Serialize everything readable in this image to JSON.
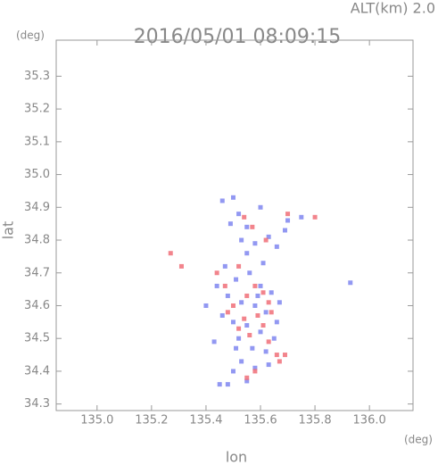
{
  "chart_data": {
    "type": "scatter",
    "title": "2016/05/01 08:09:15",
    "subtitle": "ALT(km) 2.0",
    "x_label": "lon",
    "y_label": "lat",
    "x_unit": "(deg)",
    "y_unit": "(deg)",
    "xlim": [
      134.85,
      136.16
    ],
    "ylim": [
      34.28,
      35.41
    ],
    "xticks": [
      {
        "value": 135,
        "label": "135.0"
      },
      135.2,
      135.4,
      135.6,
      135.8,
      {
        "value": 136,
        "label": "136.0"
      }
    ],
    "yticks": [
      34.3,
      34.4,
      34.5,
      34.6,
      34.7,
      34.8,
      34.9,
      {
        "value": 35,
        "label": "35.0"
      },
      35.1,
      35.2,
      35.3
    ],
    "series": [
      {
        "color": "#7f86f0",
        "x": [
          135.46,
          135.5,
          135.52,
          135.49,
          135.55,
          135.6,
          135.63,
          135.58,
          135.66,
          135.7,
          135.75,
          135.53,
          135.47,
          135.51,
          135.56,
          135.6,
          135.64,
          135.48,
          135.53,
          135.58,
          135.62,
          135.46,
          135.5,
          135.55,
          135.6,
          135.65,
          135.52,
          135.57,
          135.62,
          135.53,
          135.58,
          135.63,
          135.5,
          135.45,
          135.48,
          135.55,
          135.43,
          135.93,
          135.4,
          135.67,
          135.44,
          135.69,
          135.61,
          135.55,
          135.66,
          135.59,
          135.51
        ],
        "y": [
          34.92,
          34.93,
          34.88,
          34.85,
          34.84,
          34.9,
          34.81,
          34.79,
          34.78,
          34.86,
          34.87,
          34.8,
          34.72,
          34.68,
          34.7,
          34.66,
          34.64,
          34.63,
          34.61,
          34.6,
          34.58,
          34.57,
          34.55,
          34.54,
          34.52,
          34.5,
          34.5,
          34.47,
          34.46,
          34.43,
          34.41,
          34.42,
          34.4,
          34.36,
          34.36,
          34.37,
          34.49,
          34.67,
          34.6,
          34.61,
          34.66,
          34.83,
          34.73,
          34.76,
          34.55,
          34.63,
          34.47
        ]
      },
      {
        "color": "#f06f78",
        "x": [
          135.54,
          135.62,
          135.8,
          135.57,
          135.52,
          135.58,
          135.61,
          135.55,
          135.5,
          135.63,
          135.59,
          135.54,
          135.48,
          135.61,
          135.56,
          135.63,
          135.67,
          135.69,
          135.66,
          135.58,
          135.55,
          135.47,
          135.27,
          135.31,
          135.44,
          135.64,
          135.52,
          135.7
        ],
        "y": [
          34.87,
          34.8,
          34.87,
          34.84,
          34.72,
          34.66,
          34.64,
          34.63,
          34.6,
          34.61,
          34.57,
          34.56,
          34.58,
          34.54,
          34.51,
          34.49,
          34.43,
          34.45,
          34.45,
          34.4,
          34.38,
          34.66,
          34.76,
          34.72,
          34.7,
          34.58,
          34.53,
          34.88
        ]
      }
    ]
  }
}
